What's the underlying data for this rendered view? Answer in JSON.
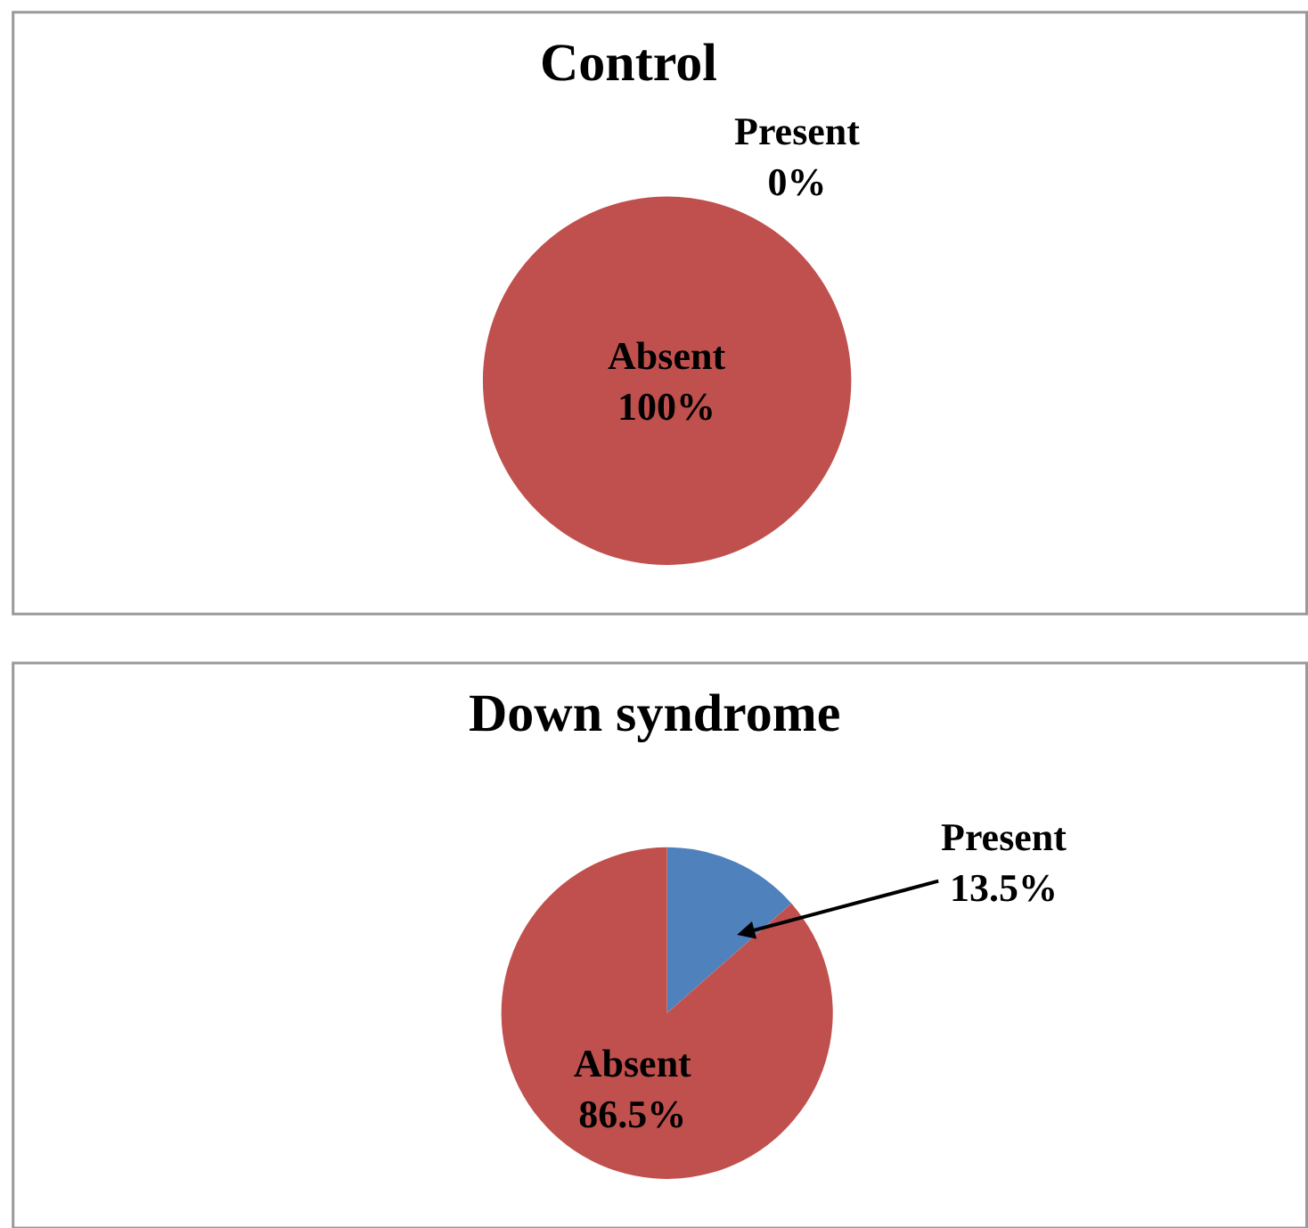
{
  "chart_data": [
    {
      "type": "pie",
      "title": "Control",
      "categories": [
        "Present",
        "Absent"
      ],
      "values": [
        0,
        100
      ],
      "colors": [
        "#4f81bd",
        "#c0504d"
      ],
      "value_labels": [
        "0%",
        "100%"
      ]
    },
    {
      "type": "pie",
      "title": "Down syndrome",
      "categories": [
        "Present",
        "Absent"
      ],
      "values": [
        13.5,
        86.5
      ],
      "colors": [
        "#4f81bd",
        "#c0504d"
      ],
      "value_labels": [
        "13.5%",
        "86.5%"
      ]
    }
  ]
}
